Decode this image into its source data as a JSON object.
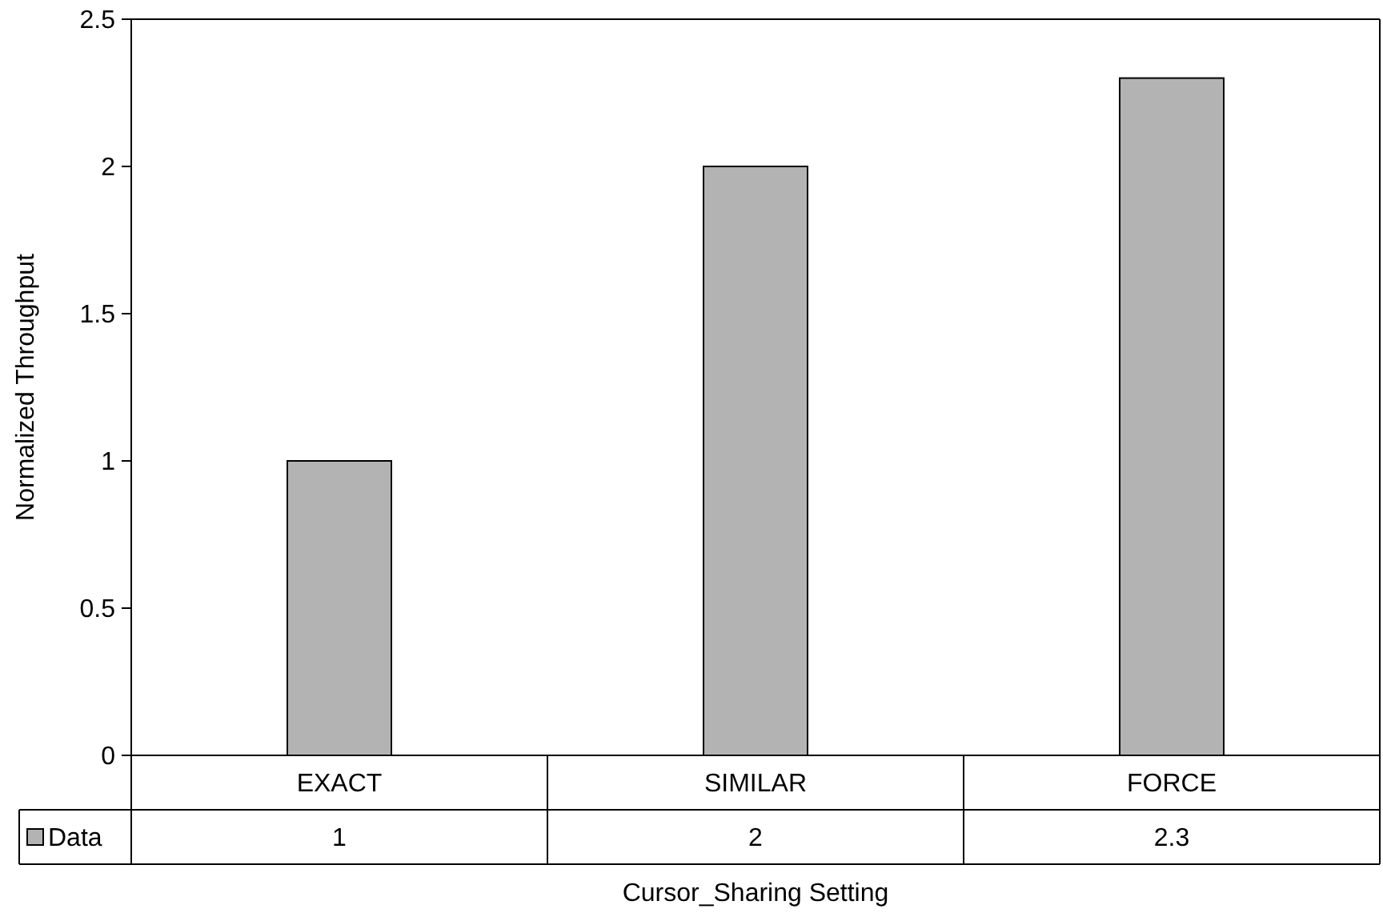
{
  "chart_data": {
    "type": "bar",
    "xlabel": "Cursor_Sharing Setting",
    "ylabel": "Normalized Throughput",
    "categories": [
      "EXACT",
      "SIMILAR",
      "FORCE"
    ],
    "series": [
      {
        "name": "Data",
        "color": "#b3b3b3",
        "values": [
          1,
          2,
          2.3
        ]
      }
    ],
    "ylim": [
      0,
      2.5
    ],
    "yticks": [
      0,
      0.5,
      1,
      1.5,
      2,
      2.5
    ],
    "data_labels": true,
    "legend": "bottom",
    "grid": false
  }
}
